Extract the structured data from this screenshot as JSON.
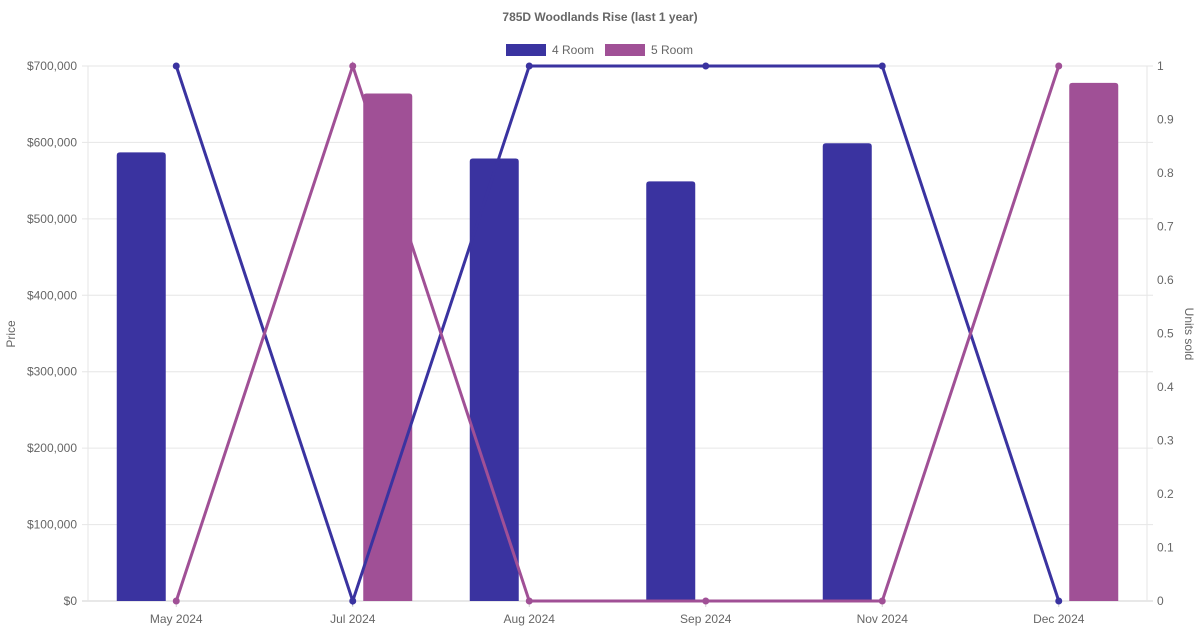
{
  "chart_data": {
    "type": "bar",
    "title": "785D Woodlands Rise (last 1 year)",
    "categories": [
      "May 2024",
      "Jul 2024",
      "Aug 2024",
      "Sep 2024",
      "Nov 2024",
      "Dec 2024"
    ],
    "y_left": {
      "label": "Price",
      "range": [
        0,
        700000
      ],
      "ticks": [
        "$0",
        "$100,000",
        "$200,000",
        "$300,000",
        "$400,000",
        "$500,000",
        "$600,000",
        "$700,000"
      ],
      "tick_values": [
        0,
        100000,
        200000,
        300000,
        400000,
        500000,
        600000,
        700000
      ]
    },
    "y_right": {
      "label": "Units sold",
      "range": [
        0,
        1
      ],
      "ticks": [
        "0",
        "0.1",
        "0.2",
        "0.3",
        "0.4",
        "0.5",
        "0.6",
        "0.7",
        "0.8",
        "0.9",
        "1"
      ],
      "tick_values": [
        0,
        0.1,
        0.2,
        0.3,
        0.4,
        0.5,
        0.6,
        0.7,
        0.8,
        0.9,
        1
      ]
    },
    "legend": {
      "placement": "top-center"
    },
    "grid": true,
    "series": [
      {
        "name": "4 Room",
        "color": "#3a33a0",
        "price": [
          587000,
          null,
          579000,
          549000,
          599000,
          null
        ],
        "units": [
          1,
          0,
          1,
          1,
          1,
          0
        ]
      },
      {
        "name": "5 Room",
        "color": "#a05096",
        "price": [
          null,
          664000,
          null,
          null,
          null,
          678000
        ],
        "units": [
          0,
          1,
          0,
          0,
          0,
          1
        ]
      }
    ]
  }
}
